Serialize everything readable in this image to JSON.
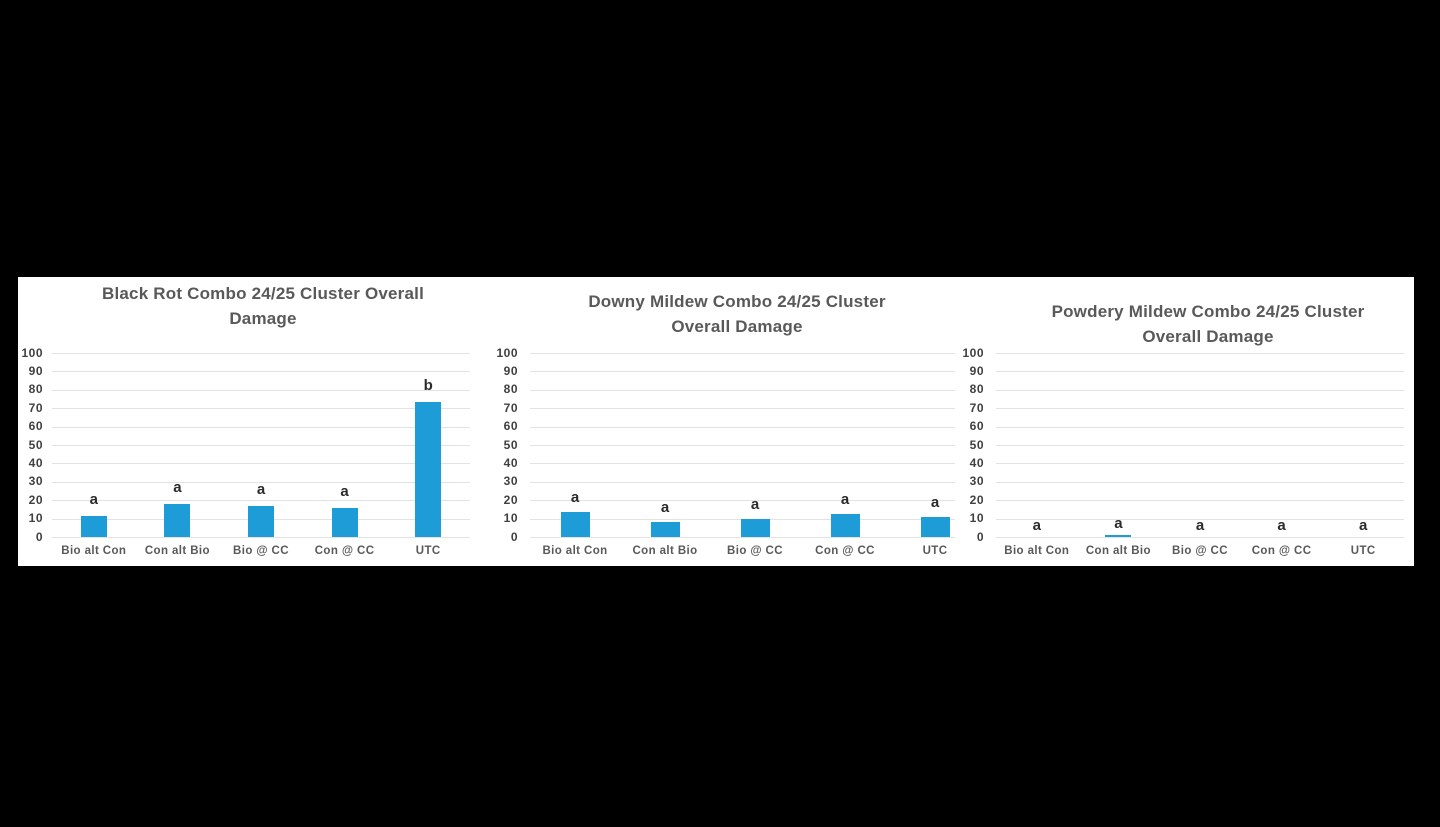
{
  "page": {
    "background_color": "#000000",
    "panel_color": "#ffffff"
  },
  "chart_data": [
    {
      "type": "bar",
      "title_line1": "Black Rot Combo 24/25 Cluster Overall",
      "title_line2": "Damage",
      "categories": [
        "Bio alt Con",
        "Con alt Bio",
        "Bio @ CC",
        "Con @ CC",
        "UTC"
      ],
      "values": [
        11.5,
        18,
        17,
        15.5,
        73.5
      ],
      "bar_labels": [
        "a",
        "a",
        "a",
        "a",
        "b"
      ],
      "yticks": [
        0,
        10,
        20,
        30,
        40,
        50,
        60,
        70,
        80,
        90,
        100
      ],
      "ylim": [
        0,
        100
      ],
      "ytick_step": 10,
      "grid": true,
      "legend": false,
      "xlabel": "",
      "ylabel": "",
      "bar_color": "#1e9cd7",
      "gridline_color": "#e2e2e2",
      "title_color": "#595959",
      "tick_color": "#404040"
    },
    {
      "type": "bar",
      "title_line1": "Downy Mildew Combo 24/25 Cluster",
      "title_line2": "Overall Damage",
      "categories": [
        "Bio alt Con",
        "Con alt Bio",
        "Bio @ CC",
        "Con @ CC",
        "UTC"
      ],
      "values": [
        13.5,
        8,
        10,
        12.5,
        11
      ],
      "bar_labels": [
        "a",
        "a",
        "a",
        "a",
        "a"
      ],
      "yticks": [
        0,
        10,
        20,
        30,
        40,
        50,
        60,
        70,
        80,
        90,
        100
      ],
      "ylim": [
        0,
        100
      ],
      "ytick_step": 10,
      "grid": true,
      "legend": false,
      "xlabel": "",
      "ylabel": "",
      "bar_color": "#1e9cd7",
      "gridline_color": "#e2e2e2",
      "title_color": "#595959",
      "tick_color": "#404040"
    },
    {
      "type": "bar",
      "title_line1": "Powdery Mildew Combo 24/25 Cluster",
      "title_line2": "Overall Damage",
      "categories": [
        "Bio alt Con",
        "Con alt Bio",
        "Bio @ CC",
        "Con @ CC",
        "UTC"
      ],
      "values": [
        0,
        1,
        0,
        0,
        0
      ],
      "bar_labels": [
        "a",
        "a",
        "a",
        "a",
        "a"
      ],
      "yticks": [
        0,
        10,
        20,
        30,
        40,
        50,
        60,
        70,
        80,
        90,
        100
      ],
      "ylim": [
        0,
        100
      ],
      "ytick_step": 10,
      "grid": true,
      "legend": false,
      "xlabel": "",
      "ylabel": "",
      "bar_color": "#1e9cd7",
      "gridline_color": "#e2e2e2",
      "title_color": "#595959",
      "tick_color": "#404040"
    }
  ]
}
